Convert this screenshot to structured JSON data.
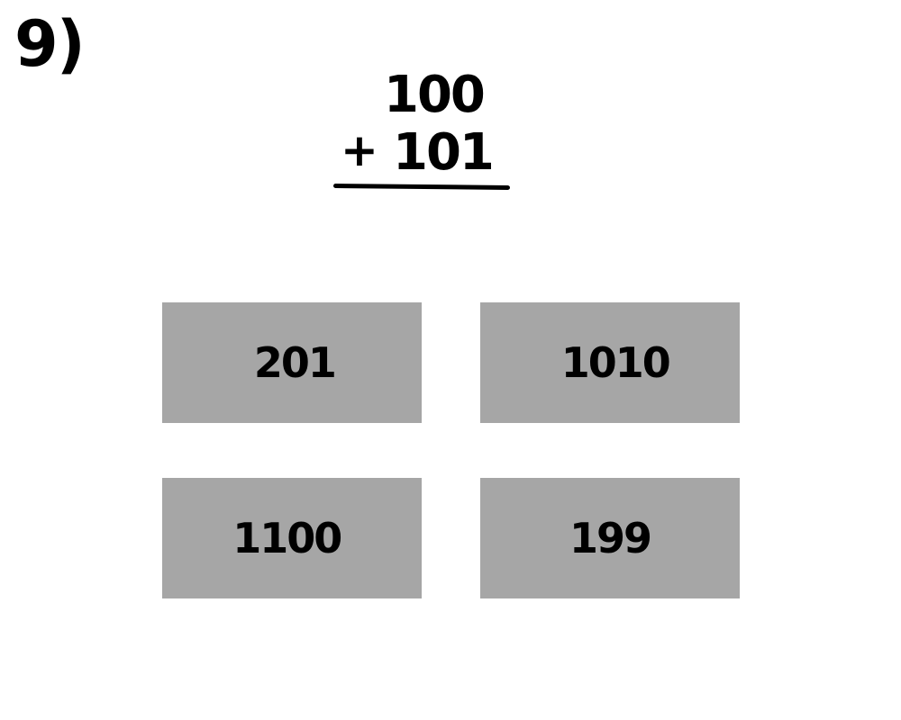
{
  "question": {
    "number": "9)",
    "addend_top": "100",
    "operator": "+",
    "addend_bottom": "101"
  },
  "choices": [
    {
      "label": "201"
    },
    {
      "label": "1010"
    },
    {
      "label": "1100"
    },
    {
      "label": "199"
    }
  ],
  "colors": {
    "background": "#ffffff",
    "choice_fill": "#a6a6a6",
    "text": "#000000"
  }
}
